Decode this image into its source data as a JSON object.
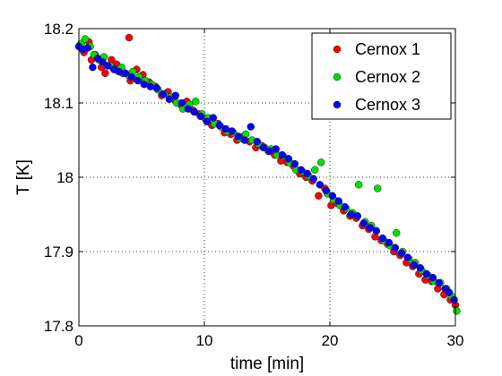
{
  "chart_data": {
    "type": "scatter",
    "title": "",
    "xlabel": "time [min]",
    "ylabel": "T [K]",
    "xlim": [
      0,
      30
    ],
    "ylim": [
      17.8,
      18.2
    ],
    "xticks": [
      0,
      10,
      20,
      30
    ],
    "yticks": [
      17.8,
      17.9,
      18,
      18.1,
      18.2
    ],
    "xtick_labels": [
      "0",
      "10",
      "20",
      "30"
    ],
    "ytick_labels": [
      "17.8",
      "17.9",
      "18",
      "18.1",
      "18.2"
    ],
    "grid": "dotted",
    "legend_position": "top-right",
    "series": [
      {
        "name": "Cernox 1",
        "color": "#ff0000",
        "points": [
          [
            0.1,
            18.178
          ],
          [
            0.4,
            18.168
          ],
          [
            0.8,
            18.182
          ],
          [
            1.0,
            18.158
          ],
          [
            1.3,
            18.165
          ],
          [
            1.8,
            18.148
          ],
          [
            2.1,
            18.14
          ],
          [
            2.6,
            18.158
          ],
          [
            3.0,
            18.152
          ],
          [
            3.5,
            18.14
          ],
          [
            4.0,
            18.188
          ],
          [
            4.1,
            18.13
          ],
          [
            4.6,
            18.145
          ],
          [
            5.1,
            18.138
          ],
          [
            5.6,
            18.128
          ],
          [
            6.1,
            18.122
          ],
          [
            6.6,
            18.11
          ],
          [
            7.1,
            18.115
          ],
          [
            7.6,
            18.105
          ],
          [
            8.1,
            18.098
          ],
          [
            8.6,
            18.102
          ],
          [
            9.1,
            18.09
          ],
          [
            9.6,
            18.085
          ],
          [
            10.1,
            18.078
          ],
          [
            10.6,
            18.07
          ],
          [
            11.1,
            18.072
          ],
          [
            11.6,
            18.06
          ],
          [
            12.1,
            18.058
          ],
          [
            12.6,
            18.05
          ],
          [
            13.1,
            18.055
          ],
          [
            13.6,
            18.048
          ],
          [
            14.1,
            18.04
          ],
          [
            14.6,
            18.042
          ],
          [
            15.1,
            18.035
          ],
          [
            15.6,
            18.03
          ],
          [
            16.1,
            18.022
          ],
          [
            16.6,
            18.02
          ],
          [
            17.1,
            18.015
          ],
          [
            17.6,
            18.005
          ],
          [
            18.1,
            18.0
          ],
          [
            18.6,
            17.995
          ],
          [
            19.1,
            17.975
          ],
          [
            19.6,
            17.985
          ],
          [
            20.1,
            17.962
          ],
          [
            20.6,
            17.965
          ],
          [
            21.1,
            17.955
          ],
          [
            21.6,
            17.948
          ],
          [
            22.1,
            17.945
          ],
          [
            22.6,
            17.935
          ],
          [
            23.1,
            17.93
          ],
          [
            23.6,
            17.92
          ],
          [
            24.1,
            17.915
          ],
          [
            24.6,
            17.91
          ],
          [
            25.1,
            17.9
          ],
          [
            25.6,
            17.895
          ],
          [
            26.1,
            17.885
          ],
          [
            26.6,
            17.88
          ],
          [
            27.1,
            17.87
          ],
          [
            27.6,
            17.862
          ],
          [
            28.1,
            17.86
          ],
          [
            28.6,
            17.85
          ],
          [
            29.1,
            17.842
          ],
          [
            29.6,
            17.835
          ],
          [
            30.0,
            17.828
          ]
        ]
      },
      {
        "name": "Cernox 2",
        "color": "#00e000",
        "points": [
          [
            0.2,
            18.18
          ],
          [
            0.5,
            18.186
          ],
          [
            0.9,
            18.176
          ],
          [
            1.2,
            18.165
          ],
          [
            1.6,
            18.158
          ],
          [
            2.0,
            18.162
          ],
          [
            2.5,
            18.15
          ],
          [
            2.9,
            18.145
          ],
          [
            3.4,
            18.148
          ],
          [
            3.9,
            18.138
          ],
          [
            4.3,
            18.142
          ],
          [
            4.8,
            18.135
          ],
          [
            5.3,
            18.13
          ],
          [
            5.8,
            18.125
          ],
          [
            6.3,
            18.118
          ],
          [
            6.8,
            18.112
          ],
          [
            7.3,
            18.108
          ],
          [
            7.8,
            18.1
          ],
          [
            8.3,
            18.092
          ],
          [
            8.8,
            18.098
          ],
          [
            9.3,
            18.102
          ],
          [
            9.8,
            18.085
          ],
          [
            10.3,
            18.08
          ],
          [
            10.8,
            18.072
          ],
          [
            11.3,
            18.068
          ],
          [
            11.8,
            18.062
          ],
          [
            12.3,
            18.06
          ],
          [
            12.8,
            18.052
          ],
          [
            13.3,
            18.058
          ],
          [
            13.8,
            18.05
          ],
          [
            14.3,
            18.045
          ],
          [
            14.8,
            18.04
          ],
          [
            15.3,
            18.038
          ],
          [
            15.8,
            18.03
          ],
          [
            16.3,
            18.028
          ],
          [
            16.8,
            18.02
          ],
          [
            17.3,
            18.01
          ],
          [
            17.8,
            18.008
          ],
          [
            18.3,
            18.002
          ],
          [
            18.8,
            18.01
          ],
          [
            19.3,
            18.02
          ],
          [
            19.8,
            17.978
          ],
          [
            20.3,
            17.97
          ],
          [
            20.8,
            17.962
          ],
          [
            21.3,
            17.958
          ],
          [
            21.8,
            17.952
          ],
          [
            22.3,
            17.99
          ],
          [
            22.8,
            17.94
          ],
          [
            23.3,
            17.935
          ],
          [
            23.8,
            17.985
          ],
          [
            24.3,
            17.915
          ],
          [
            24.8,
            17.908
          ],
          [
            25.3,
            17.925
          ],
          [
            25.8,
            17.9
          ],
          [
            26.3,
            17.89
          ],
          [
            26.8,
            17.885
          ],
          [
            27.3,
            17.875
          ],
          [
            27.8,
            17.868
          ],
          [
            28.3,
            17.86
          ],
          [
            28.8,
            17.858
          ],
          [
            29.3,
            17.85
          ],
          [
            29.7,
            17.84
          ],
          [
            30.1,
            17.82
          ]
        ]
      },
      {
        "name": "Cernox 3",
        "color": "#0000ff",
        "points": [
          [
            0.0,
            18.176
          ],
          [
            0.3,
            18.172
          ],
          [
            0.7,
            18.174
          ],
          [
            1.1,
            18.148
          ],
          [
            1.5,
            18.16
          ],
          [
            1.9,
            18.155
          ],
          [
            2.3,
            18.15
          ],
          [
            2.8,
            18.145
          ],
          [
            3.2,
            18.142
          ],
          [
            3.7,
            18.14
          ],
          [
            4.2,
            18.135
          ],
          [
            4.7,
            18.13
          ],
          [
            5.2,
            18.125
          ],
          [
            5.7,
            18.122
          ],
          [
            6.2,
            18.12
          ],
          [
            6.7,
            18.112
          ],
          [
            7.2,
            18.105
          ],
          [
            7.7,
            18.11
          ],
          [
            8.2,
            18.1
          ],
          [
            8.7,
            18.092
          ],
          [
            9.2,
            18.088
          ],
          [
            9.7,
            18.082
          ],
          [
            10.2,
            18.075
          ],
          [
            10.7,
            18.08
          ],
          [
            11.2,
            18.07
          ],
          [
            11.7,
            18.065
          ],
          [
            12.2,
            18.062
          ],
          [
            12.7,
            18.055
          ],
          [
            13.2,
            18.05
          ],
          [
            13.7,
            18.068
          ],
          [
            14.2,
            18.048
          ],
          [
            14.7,
            18.04
          ],
          [
            15.2,
            18.035
          ],
          [
            15.7,
            18.038
          ],
          [
            16.2,
            18.03
          ],
          [
            16.7,
            18.025
          ],
          [
            17.2,
            18.018
          ],
          [
            17.7,
            18.01
          ],
          [
            18.2,
            18.005
          ],
          [
            18.7,
            17.998
          ],
          [
            19.2,
            17.99
          ],
          [
            19.7,
            17.982
          ],
          [
            20.2,
            17.975
          ],
          [
            20.7,
            17.968
          ],
          [
            21.2,
            17.96
          ],
          [
            21.7,
            17.95
          ],
          [
            22.2,
            17.948
          ],
          [
            22.7,
            17.938
          ],
          [
            23.2,
            17.932
          ],
          [
            23.7,
            17.928
          ],
          [
            24.2,
            17.918
          ],
          [
            24.7,
            17.912
          ],
          [
            25.2,
            17.905
          ],
          [
            25.7,
            17.898
          ],
          [
            26.2,
            17.892
          ],
          [
            26.7,
            17.882
          ],
          [
            27.2,
            17.878
          ],
          [
            27.7,
            17.87
          ],
          [
            28.2,
            17.865
          ],
          [
            28.7,
            17.858
          ],
          [
            29.2,
            17.85
          ],
          [
            29.5,
            17.845
          ],
          [
            29.9,
            17.835
          ]
        ]
      }
    ]
  }
}
